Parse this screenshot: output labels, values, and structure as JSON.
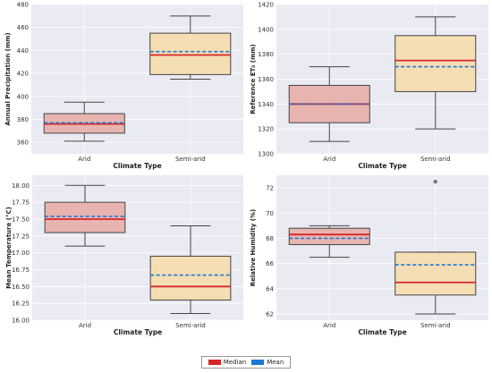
{
  "chart_data": [
    {
      "type": "box",
      "xlabel": "Climate Type",
      "ylabel": "Annual Precipitation (mm)",
      "categories": [
        "Arid",
        "Semi-arid"
      ],
      "ylim": [
        350,
        480
      ],
      "yticks": [
        360,
        380,
        400,
        420,
        440,
        460,
        480
      ],
      "boxes": [
        {
          "category": "Arid",
          "min": 361,
          "q1": 368,
          "median": 376,
          "mean": 377,
          "q3": 385,
          "max": 395,
          "outliers": []
        },
        {
          "category": "Semi-arid",
          "min": 415,
          "q1": 419,
          "median": 436,
          "mean": 439,
          "q3": 455,
          "max": 470,
          "outliers": []
        }
      ]
    },
    {
      "type": "box",
      "xlabel": "Climate Type",
      "ylabel": "Reference ET₀ (mm)",
      "categories": [
        "Arid",
        "Semi-arid"
      ],
      "ylim": [
        1300,
        1420
      ],
      "yticks": [
        1300,
        1320,
        1340,
        1360,
        1380,
        1400,
        1420
      ],
      "boxes": [
        {
          "category": "Arid",
          "min": 1310,
          "q1": 1325,
          "median": 1340,
          "mean": 1340,
          "q3": 1355,
          "max": 1370,
          "outliers": []
        },
        {
          "category": "Semi-arid",
          "min": 1320,
          "q1": 1350,
          "median": 1375,
          "mean": 1370,
          "q3": 1395,
          "max": 1410,
          "outliers": []
        }
      ]
    },
    {
      "type": "box",
      "xlabel": "Climate Type",
      "ylabel": "Mean Temperature (°C)",
      "categories": [
        "Arid",
        "Semi-arid"
      ],
      "ylim": [
        16.0,
        18.15
      ],
      "yticks": [
        "16.00",
        "16.25",
        "16.50",
        "16.75",
        "17.00",
        "17.25",
        "17.50",
        "17.75",
        "18.00"
      ],
      "boxes": [
        {
          "category": "Arid",
          "min": 17.1,
          "q1": 17.3,
          "median": 17.5,
          "mean": 17.54,
          "q3": 17.75,
          "max": 18.0,
          "outliers": []
        },
        {
          "category": "Semi-arid",
          "min": 16.1,
          "q1": 16.3,
          "median": 16.5,
          "mean": 16.67,
          "q3": 16.95,
          "max": 17.4,
          "outliers": []
        }
      ]
    },
    {
      "type": "box",
      "xlabel": "Climate Type",
      "ylabel": "Relative Humidity (%)",
      "categories": [
        "Arid",
        "Semi-arid"
      ],
      "ylim": [
        61.5,
        73
      ],
      "yticks": [
        62,
        64,
        66,
        68,
        70,
        72
      ],
      "boxes": [
        {
          "category": "Arid",
          "min": 66.5,
          "q1": 67.5,
          "median": 68.3,
          "mean": 68.0,
          "q3": 68.8,
          "max": 69.0,
          "outliers": []
        },
        {
          "category": "Semi-arid",
          "min": 62.0,
          "q1": 63.5,
          "median": 64.5,
          "mean": 65.9,
          "q3": 66.9,
          "max": 66.9,
          "outliers": [
            72.5
          ]
        }
      ]
    }
  ],
  "legend": {
    "items": [
      {
        "label": "Median",
        "color": "#d62728"
      },
      {
        "label": "Mean",
        "color": "#1f77d4"
      }
    ]
  },
  "colors": {
    "arid_box": "#e8b4b0",
    "semiarid_box": "#f5deb3",
    "panel_bg": "#eaeaf2",
    "grid": "#ffffff",
    "median": "#d62728",
    "mean": "#1f77d4",
    "outlier": "#777777"
  }
}
